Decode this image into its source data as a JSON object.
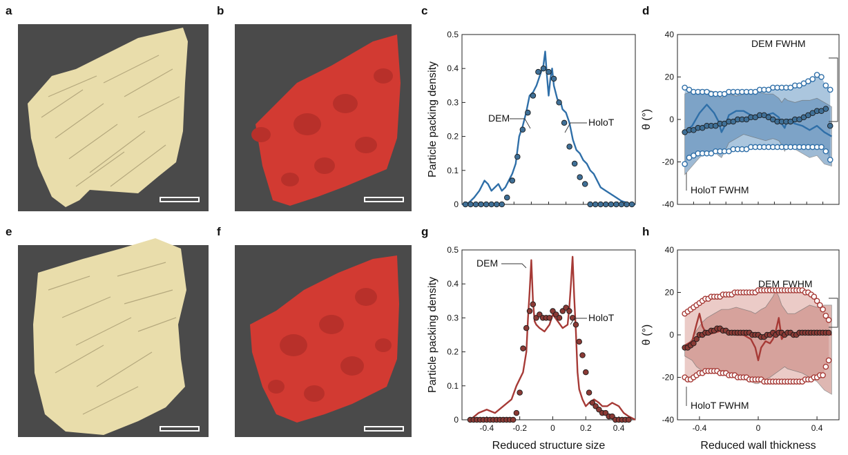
{
  "panel_letters": [
    "a",
    "b",
    "c",
    "d",
    "e",
    "f",
    "g",
    "h"
  ],
  "colors": {
    "holot_blue": "#2f6fa8",
    "dem_blue_fill": "#3f6f96",
    "blue_band_light": "#8fb3d3",
    "blue_band_dark": "#5f8db8",
    "holot_red": "#a63a36",
    "dem_red_fill": "#8a3a35",
    "red_band_light": "#e4b9b4",
    "red_band_dark": "#c98880",
    "render_bg": "#4a4a4a",
    "beige_particles": "#e9ddab",
    "red_particles": "#d23a32"
  },
  "chart_data": [
    {
      "panel": "c",
      "type": "line",
      "ylabel": "Particle packing density",
      "xlim": [
        -0.5,
        0.5
      ],
      "ylim": [
        0,
        0.5
      ],
      "yticks": [
        0,
        0.1,
        0.2,
        0.3,
        0.4,
        0.5
      ],
      "ytick_labels": [
        "0",
        "0.1",
        "0.2",
        "0.3",
        "0.4",
        "0.5"
      ],
      "annotations": [
        "DEM",
        "HoloT"
      ],
      "series": [
        {
          "name": "HoloT",
          "style": "line",
          "x": [
            -0.5,
            -0.46,
            -0.43,
            -0.4,
            -0.37,
            -0.35,
            -0.33,
            -0.31,
            -0.29,
            -0.27,
            -0.25,
            -0.23,
            -0.21,
            -0.19,
            -0.17,
            -0.15,
            -0.13,
            -0.11,
            -0.09,
            -0.07,
            -0.05,
            -0.03,
            -0.02,
            -0.01,
            0.0,
            0.01,
            0.02,
            0.03,
            0.05,
            0.07,
            0.08,
            0.1,
            0.12,
            0.14,
            0.16,
            0.18,
            0.2,
            0.22,
            0.24,
            0.26,
            0.28,
            0.3,
            0.33,
            0.36,
            0.39,
            0.42,
            0.45,
            0.48,
            0.5
          ],
          "y": [
            0,
            0.005,
            0.02,
            0.04,
            0.07,
            0.06,
            0.04,
            0.05,
            0.06,
            0.04,
            0.05,
            0.07,
            0.09,
            0.12,
            0.2,
            0.23,
            0.27,
            0.32,
            0.33,
            0.35,
            0.38,
            0.41,
            0.45,
            0.38,
            0.32,
            0.37,
            0.4,
            0.35,
            0.31,
            0.3,
            0.28,
            0.27,
            0.24,
            0.19,
            0.16,
            0.15,
            0.13,
            0.12,
            0.1,
            0.09,
            0.07,
            0.05,
            0.04,
            0.03,
            0.02,
            0.01,
            0.005,
            0,
            0
          ]
        },
        {
          "name": "DEM",
          "style": "dots",
          "x": [
            -0.48,
            -0.45,
            -0.42,
            -0.39,
            -0.36,
            -0.33,
            -0.3,
            -0.27,
            -0.24,
            -0.21,
            -0.18,
            -0.15,
            -0.12,
            -0.09,
            -0.06,
            -0.03,
            0.0,
            0.03,
            0.06,
            0.09,
            0.12,
            0.15,
            0.18,
            0.21,
            0.24,
            0.27,
            0.3,
            0.33,
            0.36,
            0.39,
            0.42,
            0.45,
            0.48
          ],
          "y": [
            0,
            0,
            0,
            0,
            0,
            0,
            0,
            0,
            0.02,
            0.07,
            0.14,
            0.22,
            0.27,
            0.32,
            0.39,
            0.4,
            0.39,
            0.37,
            0.3,
            0.24,
            0.17,
            0.12,
            0.08,
            0.06,
            0,
            0,
            0,
            0,
            0,
            0,
            0,
            0,
            0
          ]
        }
      ]
    },
    {
      "panel": "d",
      "type": "line",
      "ylabel": "θ (°)",
      "xlim": [
        -0.55,
        0.55
      ],
      "ylim": [
        -40,
        40
      ],
      "yticks": [
        -40,
        -20,
        0,
        20,
        40
      ],
      "ytick_labels": [
        "-40",
        "-20",
        "0",
        "20",
        "40"
      ],
      "annotations": [
        "DEM FWHM",
        "HoloT FWHM"
      ],
      "series": [
        {
          "name": "HoloT",
          "style": "line",
          "x": [
            -0.5,
            -0.45,
            -0.4,
            -0.35,
            -0.3,
            -0.27,
            -0.25,
            -0.22,
            -0.2,
            -0.15,
            -0.1,
            -0.05,
            0.0,
            0.05,
            0.1,
            0.14,
            0.16,
            0.18,
            0.2,
            0.25,
            0.3,
            0.35,
            0.4,
            0.45,
            0.5
          ],
          "y": [
            -6,
            -3,
            3,
            7,
            3,
            -1,
            -6,
            -2,
            2,
            4,
            4,
            2,
            1,
            2,
            3,
            1,
            -2,
            -4,
            0,
            -2,
            -3,
            -5,
            -3,
            -6,
            -8
          ],
          "band_upper": [
            12,
            13,
            14,
            14,
            13,
            11,
            10,
            12,
            12,
            11,
            12,
            12,
            13,
            12,
            12,
            10,
            8,
            10,
            9,
            8,
            9,
            9,
            10,
            8,
            6
          ],
          "band_lower": [
            -26,
            -22,
            -18,
            -15,
            -15,
            -17,
            -18,
            -14,
            -11,
            -9,
            -7,
            -8,
            -9,
            -10,
            -9,
            -10,
            -12,
            -15,
            -12,
            -14,
            -16,
            -18,
            -17,
            -21,
            -22
          ]
        },
        {
          "name": "DEM",
          "style": "dots",
          "x": [
            -0.5,
            -0.47,
            -0.44,
            -0.41,
            -0.38,
            -0.35,
            -0.32,
            -0.29,
            -0.26,
            -0.23,
            -0.2,
            -0.17,
            -0.14,
            -0.11,
            -0.08,
            -0.05,
            -0.02,
            0.01,
            0.04,
            0.07,
            0.1,
            0.13,
            0.16,
            0.19,
            0.22,
            0.25,
            0.28,
            0.31,
            0.34,
            0.37,
            0.4,
            0.43,
            0.46,
            0.49
          ],
          "y": [
            -6,
            -5,
            -5,
            -4,
            -4,
            -3,
            -3,
            -3,
            -2,
            -2,
            -1,
            -1,
            0,
            0,
            0,
            1,
            1,
            2,
            2,
            1,
            0,
            -1,
            -1,
            -1,
            -1,
            0,
            0,
            1,
            2,
            3,
            4,
            4,
            5,
            -3
          ],
          "fwhm_upper": [
            15,
            14,
            13,
            13,
            13,
            13,
            12,
            12,
            12,
            12,
            13,
            13,
            13,
            13,
            13,
            13,
            13,
            14,
            14,
            14,
            15,
            15,
            15,
            15,
            15,
            16,
            16,
            17,
            18,
            19,
            21,
            20,
            16,
            14
          ],
          "fwhm_lower": [
            -21,
            -18,
            -17,
            -16,
            -16,
            -16,
            -16,
            -15,
            -15,
            -15,
            -15,
            -14,
            -14,
            -14,
            -14,
            -13,
            -13,
            -13,
            -13,
            -13,
            -13,
            -13,
            -13,
            -13,
            -13,
            -13,
            -13,
            -13,
            -13,
            -13,
            -13,
            -13,
            -15,
            -19
          ]
        }
      ]
    },
    {
      "panel": "g",
      "type": "line",
      "ylabel": "Particle packing density",
      "xlabel": "Reduced structure size",
      "xlim": [
        -0.55,
        0.5
      ],
      "ylim": [
        0,
        0.5
      ],
      "xticks": [
        -0.4,
        -0.2,
        0,
        0.2,
        0.4
      ],
      "xtick_labels": [
        "-0.4",
        "-0.2",
        "0",
        "0.2",
        "0.4"
      ],
      "yticks": [
        0,
        0.1,
        0.2,
        0.3,
        0.4,
        0.5
      ],
      "ytick_labels": [
        "0",
        "0.1",
        "0.2",
        "0.3",
        "0.4",
        "0.5"
      ],
      "annotations": [
        "DEM",
        "HoloT"
      ],
      "series": [
        {
          "name": "HoloT",
          "style": "line",
          "x": [
            -0.5,
            -0.45,
            -0.4,
            -0.35,
            -0.3,
            -0.25,
            -0.22,
            -0.2,
            -0.18,
            -0.16,
            -0.15,
            -0.14,
            -0.13,
            -0.12,
            -0.11,
            -0.1,
            -0.08,
            -0.05,
            -0.02,
            0.0,
            0.03,
            0.06,
            0.09,
            0.1,
            0.11,
            0.12,
            0.13,
            0.14,
            0.15,
            0.16,
            0.18,
            0.2,
            0.22,
            0.25,
            0.28,
            0.3,
            0.33,
            0.36,
            0.4,
            0.43,
            0.46,
            0.5
          ],
          "y": [
            0,
            0.02,
            0.03,
            0.02,
            0.04,
            0.06,
            0.1,
            0.12,
            0.14,
            0.2,
            0.3,
            0.38,
            0.47,
            0.35,
            0.29,
            0.28,
            0.27,
            0.26,
            0.28,
            0.31,
            0.29,
            0.27,
            0.28,
            0.33,
            0.4,
            0.48,
            0.36,
            0.26,
            0.14,
            0.09,
            0.06,
            0.04,
            0.05,
            0.06,
            0.05,
            0.04,
            0.04,
            0.05,
            0.04,
            0.02,
            0.01,
            0
          ]
        },
        {
          "name": "DEM",
          "style": "dots",
          "x": [
            -0.5,
            -0.48,
            -0.46,
            -0.44,
            -0.42,
            -0.4,
            -0.38,
            -0.36,
            -0.34,
            -0.32,
            -0.3,
            -0.28,
            -0.26,
            -0.24,
            -0.22,
            -0.2,
            -0.18,
            -0.16,
            -0.14,
            -0.12,
            -0.1,
            -0.08,
            -0.06,
            -0.04,
            -0.02,
            0.0,
            0.02,
            0.04,
            0.06,
            0.08,
            0.1,
            0.12,
            0.14,
            0.16,
            0.18,
            0.2,
            0.22,
            0.24,
            0.26,
            0.28,
            0.3,
            0.32,
            0.34,
            0.36,
            0.38,
            0.4,
            0.42,
            0.44,
            0.46
          ],
          "y": [
            0,
            0,
            0,
            0,
            0,
            0,
            0,
            0,
            0,
            0,
            0,
            0,
            0,
            0,
            0.02,
            0.08,
            0.21,
            0.27,
            0.32,
            0.34,
            0.3,
            0.31,
            0.3,
            0.3,
            0.3,
            0.32,
            0.31,
            0.3,
            0.32,
            0.33,
            0.32,
            0.3,
            0.28,
            0.23,
            0.19,
            0.14,
            0.08,
            0.05,
            0.04,
            0.03,
            0.02,
            0.02,
            0.01,
            0.01,
            0,
            0,
            0,
            0,
            0
          ]
        }
      ]
    },
    {
      "panel": "h",
      "type": "line",
      "ylabel": "θ (°)",
      "xlabel": "Reduced wall thickness",
      "xlim": [
        -0.55,
        0.55
      ],
      "ylim": [
        -40,
        40
      ],
      "xticks": [
        -0.4,
        0,
        0.4
      ],
      "xtick_labels": [
        "-0.4",
        "0",
        "0.4"
      ],
      "yticks": [
        -40,
        -20,
        0,
        20,
        40
      ],
      "ytick_labels": [
        "-40",
        "-20",
        "0",
        "20",
        "40"
      ],
      "annotations": [
        "DEM FWHM",
        "HoloT FWHM"
      ],
      "series": [
        {
          "name": "HoloT",
          "style": "line",
          "x": [
            -0.5,
            -0.45,
            -0.42,
            -0.4,
            -0.38,
            -0.35,
            -0.3,
            -0.25,
            -0.2,
            -0.15,
            -0.1,
            -0.05,
            -0.02,
            0.0,
            0.02,
            0.05,
            0.08,
            0.1,
            0.12,
            0.14,
            0.16,
            0.18,
            0.2,
            0.25,
            0.3,
            0.35,
            0.4,
            0.45,
            0.5
          ],
          "y": [
            -5,
            -3,
            5,
            10,
            4,
            0,
            1,
            2,
            1,
            0,
            0,
            -2,
            -6,
            -12,
            -6,
            -3,
            -4,
            -2,
            2,
            8,
            -2,
            0,
            1,
            0,
            1,
            0,
            2,
            1,
            0
          ],
          "band_upper": [
            -6,
            -2,
            2,
            4,
            6,
            8,
            10,
            12,
            12,
            13,
            12,
            11,
            10,
            11,
            12,
            13,
            16,
            18,
            21,
            18,
            14,
            12,
            10,
            10,
            12,
            14,
            13,
            14,
            14
          ],
          "band_lower": [
            -10,
            -12,
            -15,
            -16,
            -17,
            -17,
            -18,
            -18,
            -19,
            -20,
            -21,
            -22,
            -23,
            -23,
            -22,
            -21,
            -20,
            -19,
            -18,
            -17,
            -16,
            -15,
            -16,
            -17,
            -18,
            -20,
            -22,
            -26,
            -28
          ]
        },
        {
          "name": "DEM",
          "style": "dots",
          "x": [
            -0.5,
            -0.48,
            -0.46,
            -0.44,
            -0.42,
            -0.4,
            -0.38,
            -0.36,
            -0.34,
            -0.32,
            -0.3,
            -0.28,
            -0.26,
            -0.24,
            -0.22,
            -0.2,
            -0.18,
            -0.16,
            -0.14,
            -0.12,
            -0.1,
            -0.08,
            -0.06,
            -0.04,
            -0.02,
            0.0,
            0.02,
            0.04,
            0.06,
            0.08,
            0.1,
            0.12,
            0.14,
            0.16,
            0.18,
            0.2,
            0.22,
            0.24,
            0.26,
            0.28,
            0.3,
            0.32,
            0.34,
            0.36,
            0.38,
            0.4,
            0.42,
            0.44,
            0.46,
            0.48
          ],
          "y": [
            -6,
            -6,
            -5,
            -4,
            -2,
            0,
            0,
            1,
            1,
            2,
            2,
            3,
            3,
            2,
            2,
            1,
            1,
            1,
            1,
            1,
            1,
            1,
            1,
            0,
            0,
            0,
            -1,
            -1,
            0,
            0,
            1,
            0,
            1,
            1,
            0,
            1,
            1,
            0,
            0,
            1,
            1,
            1,
            1,
            1,
            1,
            1,
            1,
            1,
            1,
            1
          ],
          "fwhm_upper": [
            10,
            11,
            12,
            13,
            14,
            15,
            16,
            17,
            17,
            18,
            18,
            18,
            18,
            19,
            19,
            19,
            19,
            20,
            20,
            20,
            20,
            20,
            20,
            20,
            20,
            21,
            21,
            21,
            21,
            21,
            21,
            21,
            21,
            21,
            21,
            21,
            21,
            21,
            21,
            21,
            21,
            20,
            20,
            19,
            18,
            16,
            14,
            12,
            9,
            7
          ],
          "fwhm_lower": [
            -20,
            -21,
            -21,
            -20,
            -19,
            -18,
            -18,
            -17,
            -17,
            -17,
            -17,
            -17,
            -18,
            -18,
            -18,
            -19,
            -19,
            -19,
            -20,
            -20,
            -20,
            -20,
            -21,
            -21,
            -21,
            -21,
            -21,
            -22,
            -22,
            -22,
            -22,
            -22,
            -22,
            -22,
            -22,
            -22,
            -22,
            -22,
            -22,
            -22,
            -22,
            -21,
            -21,
            -21,
            -20,
            -20,
            -19,
            -19,
            -15,
            -12
          ]
        }
      ]
    }
  ]
}
